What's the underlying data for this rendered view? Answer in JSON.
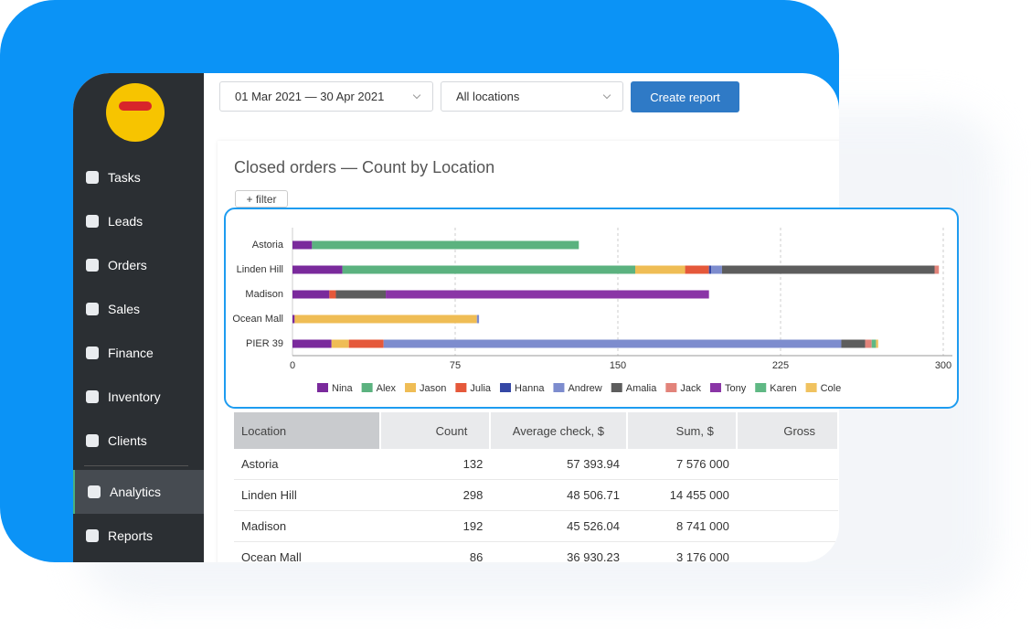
{
  "sidebar": {
    "items": [
      "Tasks",
      "Leads",
      "Orders",
      "Sales",
      "Finance",
      "Inventory",
      "Clients",
      "Analytics",
      "Reports"
    ],
    "active_index": 7
  },
  "toolbar": {
    "date_range": "01 Mar 2021 — 30 Apr 2021",
    "location": "All locations",
    "button": "Create report"
  },
  "filter_button": "+ filter",
  "chart_data": {
    "type": "stacked-barh",
    "title": "Closed orders — Count by Location",
    "categories": [
      "Astoria",
      "Linden Hill",
      "Madison",
      "Ocean Mall",
      "PIER 39"
    ],
    "series": [
      {
        "name": "Nina",
        "color": "#7a2a9c",
        "values": [
          9,
          23,
          17,
          1,
          18
        ]
      },
      {
        "name": "Alex",
        "color": "#5bb27f",
        "values": [
          123,
          135,
          0,
          0,
          0
        ]
      },
      {
        "name": "Jason",
        "color": "#efbd55",
        "values": [
          0,
          23,
          0,
          84,
          8
        ]
      },
      {
        "name": "Julia",
        "color": "#e5583a",
        "values": [
          0,
          11,
          3,
          0,
          16
        ]
      },
      {
        "name": "Hanna",
        "color": "#3547a5",
        "values": [
          0,
          1,
          0,
          0,
          0
        ]
      },
      {
        "name": "Andrew",
        "color": "#7d8cce",
        "values": [
          0,
          5,
          0,
          1,
          211
        ]
      },
      {
        "name": "Amalia",
        "color": "#5d5d5d",
        "values": [
          0,
          98,
          23,
          0,
          11
        ]
      },
      {
        "name": "Jack",
        "color": "#e2837a",
        "values": [
          0,
          2,
          0,
          0,
          3
        ]
      },
      {
        "name": "Tony",
        "color": "#8a35a6",
        "values": [
          0,
          0,
          149,
          0,
          0
        ]
      },
      {
        "name": "Karen",
        "color": "#5fb884",
        "values": [
          0,
          0,
          0,
          0,
          2
        ]
      },
      {
        "name": "Cole",
        "color": "#f0c25f",
        "values": [
          0,
          0,
          0,
          0,
          1
        ]
      }
    ],
    "xlim": [
      0,
      300
    ],
    "xticks": [
      0,
      75,
      150,
      225,
      300
    ],
    "grid": true
  },
  "table": {
    "headers": [
      "Location",
      "Count",
      "Average check, $",
      "Sum, $",
      "Gross"
    ],
    "rows": [
      [
        "Astoria",
        132,
        "57 393.94",
        "7 576 000",
        ""
      ],
      [
        "Linden Hill",
        298,
        "48 506.71",
        "14 455 000",
        ""
      ],
      [
        "Madison",
        192,
        "45 526.04",
        "8 741 000",
        ""
      ],
      [
        "Ocean Mall",
        86,
        "36 930.23",
        "3 176 000",
        ""
      ]
    ]
  }
}
